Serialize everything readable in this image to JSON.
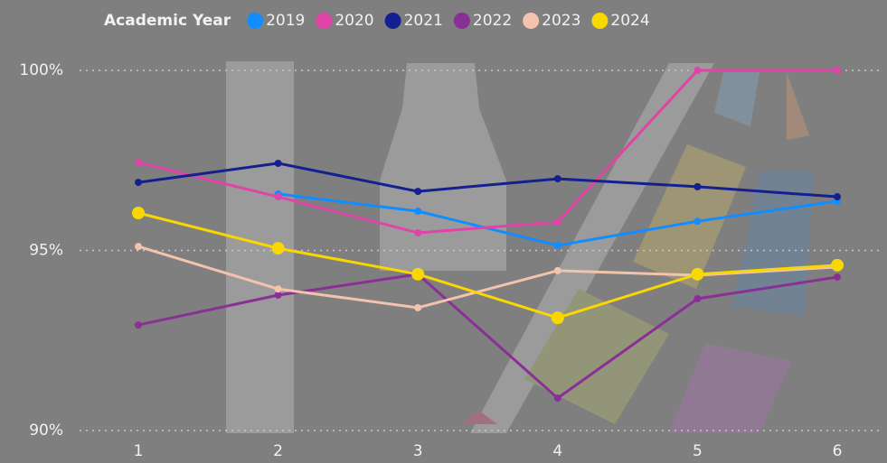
{
  "chart_data": {
    "type": "line",
    "legend_title": "Academic Year",
    "legend_position": "top",
    "categories": [
      "1",
      "2",
      "3",
      "4",
      "5",
      "6"
    ],
    "series": [
      {
        "name": "2019",
        "color": "#118dff",
        "marker_size": 4,
        "values": [
          null,
          96.57,
          96.09,
          95.14,
          95.81,
          96.37
        ]
      },
      {
        "name": "2020",
        "color": "#e044a7",
        "marker_size": 4,
        "values": [
          97.44,
          96.49,
          95.49,
          95.79,
          100,
          100
        ]
      },
      {
        "name": "2021",
        "color": "#14208f",
        "marker_size": 4,
        "values": [
          96.89,
          97.42,
          96.64,
          96.99,
          96.77,
          96.49
        ]
      },
      {
        "name": "2022",
        "color": "#8a2f96",
        "marker_size": 4,
        "values": [
          92.93,
          93.76,
          94.34,
          90.9,
          93.66,
          94.26
        ]
      },
      {
        "name": "2023",
        "color": "#f4c3ad",
        "marker_size": 4,
        "values": [
          95.11,
          93.93,
          93.41,
          94.44,
          94.31,
          94.54
        ]
      },
      {
        "name": "2024",
        "color": "#f8d800",
        "marker_size": 7,
        "values": [
          96.04,
          95.06,
          94.34,
          93.13,
          94.34,
          94.59
        ]
      }
    ],
    "ylim": [
      90,
      100
    ],
    "yticks": [
      {
        "value": 90,
        "label": "90%"
      },
      {
        "value": 95,
        "label": "95%"
      },
      {
        "value": 100,
        "label": "100%"
      }
    ],
    "grid": true
  }
}
